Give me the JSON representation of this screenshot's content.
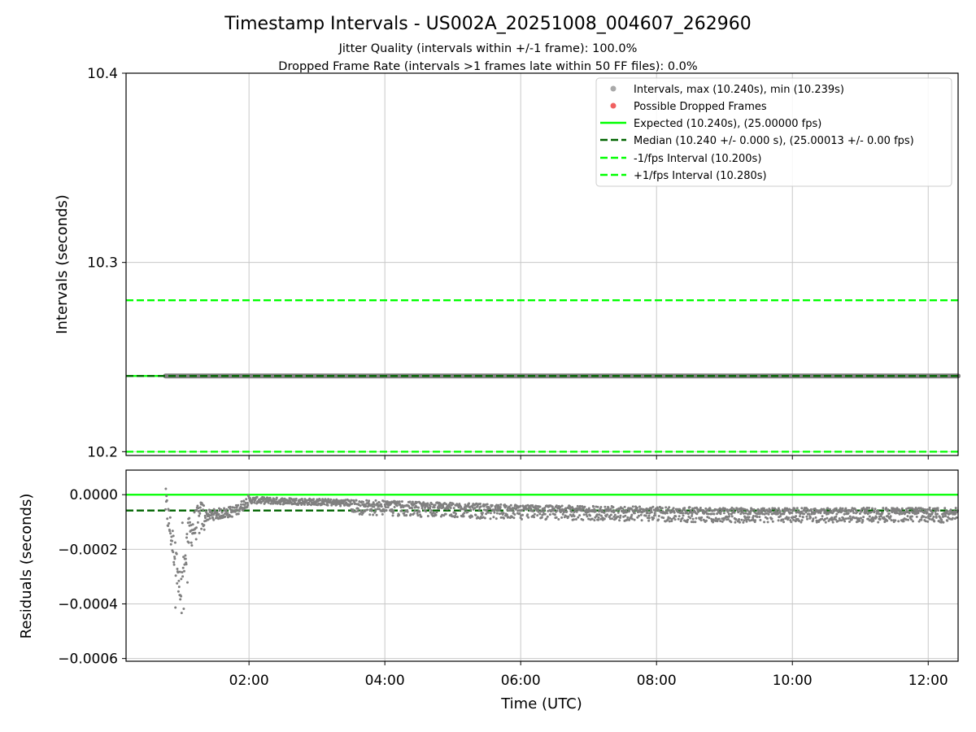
{
  "chart_data": [
    {
      "type": "scatter",
      "title": "Timestamp Intervals - US002A_20251008_004607_262960",
      "subtitle_lines": [
        "Jitter Quality (intervals within +/-1 frame): 100.0%",
        "Dropped Frame Rate (intervals >1 frames late within 50 FF files): 0.0%"
      ],
      "ylabel": "Intervals (seconds)",
      "xlim_hours": [
        0.19,
        12.44
      ],
      "ylim": [
        10.198,
        10.4
      ],
      "yticks": [
        10.2,
        10.3,
        10.4
      ],
      "ytick_labels": [
        "10.2",
        "10.3",
        "10.4"
      ],
      "grid": true,
      "legend_position": "top-right",
      "legend": [
        {
          "label": "Intervals, max (10.240s), min (10.239s)",
          "kind": "marker",
          "color": "#a9a9a9"
        },
        {
          "label": "Possible Dropped Frames",
          "kind": "marker",
          "color": "#f06060"
        },
        {
          "label": "Expected (10.240s), (25.00000 fps)",
          "kind": "solid",
          "color": "#00ff00"
        },
        {
          "label": "Median (10.240 +/- 0.000 s), (25.00013 +/- 0.00 fps)",
          "kind": "dashed",
          "color": "#006400"
        },
        {
          "label": "-1/fps Interval (10.200s)",
          "kind": "dashed",
          "color": "#00ff00"
        },
        {
          "label": "+1/fps Interval (10.280s)",
          "kind": "dashed",
          "color": "#00ff00"
        }
      ],
      "series": [
        {
          "name": "Intervals",
          "x_start_hours": 0.77,
          "x_end_hours": 12.44,
          "y": 10.24,
          "color": "#808080"
        },
        {
          "name": "Expected",
          "y": 10.24,
          "color": "#00ff00",
          "style": "solid"
        },
        {
          "name": "Median",
          "y": 10.24,
          "color": "#006400",
          "style": "dashed"
        },
        {
          "name": "-1/fps Interval",
          "y": 10.2,
          "color": "#00ff00",
          "style": "dashed"
        },
        {
          "name": "+1/fps Interval",
          "y": 10.28,
          "color": "#00ff00",
          "style": "dashed"
        }
      ]
    },
    {
      "type": "scatter",
      "ylabel": "Residuals (seconds)",
      "xlabel": "Time (UTC)",
      "xlim_hours": [
        0.19,
        12.44
      ],
      "ylim": [
        -0.00061,
        9e-05
      ],
      "yticks": [
        0.0,
        -0.0002,
        -0.0004,
        -0.0006
      ],
      "ytick_labels": [
        "0.0000",
        "−0.0002",
        "−0.0004",
        "−0.0006"
      ],
      "xticks_hours": [
        2,
        4,
        6,
        8,
        10,
        12
      ],
      "xtick_labels": [
        "02:00",
        "04:00",
        "06:00",
        "08:00",
        "10:00",
        "12:00"
      ],
      "grid": true,
      "reference_lines": [
        {
          "name": "Expected",
          "y": 0.0,
          "color": "#00ff00",
          "style": "solid"
        },
        {
          "name": "Median",
          "y": -5.8e-05,
          "color": "#006400",
          "style": "dashed"
        }
      ],
      "residual_trend": [
        {
          "x_hours": 0.77,
          "y": -3e-05
        },
        {
          "x_hours": 1.0,
          "y": -0.00035
        },
        {
          "x_hours": 1.1,
          "y": -0.00015
        },
        {
          "x_hours": 1.3,
          "y": -8e-05
        },
        {
          "x_hours": 1.8,
          "y": -6e-05
        },
        {
          "x_hours": 2.0,
          "y": -2e-05
        },
        {
          "x_hours": 3.5,
          "y": -3e-05
        },
        {
          "x_hours": 6.0,
          "y": -5e-05
        },
        {
          "x_hours": 9.0,
          "y": -6e-05
        },
        {
          "x_hours": 12.44,
          "y": -6e-05
        }
      ],
      "point_color": "#808080"
    }
  ]
}
